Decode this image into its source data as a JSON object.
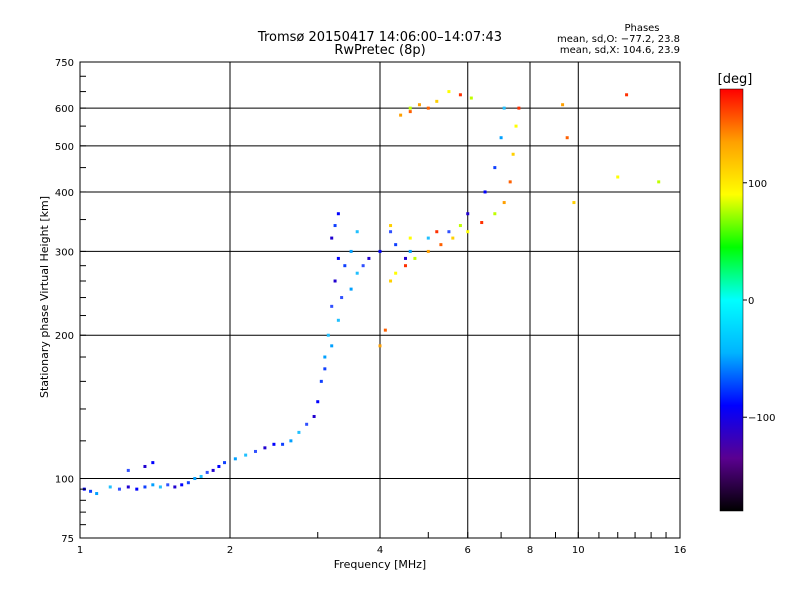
{
  "chart_data": {
    "type": "scatter",
    "title": "Tromsø 20150417 14:06:00–14:07:43",
    "subtitle": "RwPretec (8p)",
    "xlabel": "Frequency [MHz]",
    "ylabel": "Stationary phase Virtual Height [km]",
    "x_scale": "log",
    "y_scale": "log",
    "xlim": [
      1,
      16
    ],
    "ylim": [
      75,
      750
    ],
    "x_ticks": [
      1,
      2,
      4,
      6,
      8,
      10,
      16
    ],
    "x_tick_labels": [
      "1",
      "2",
      "4",
      "6",
      "8",
      "10",
      "16"
    ],
    "y_ticks": [
      75,
      100,
      200,
      300,
      400,
      500,
      600,
      750
    ],
    "y_tick_labels": [
      "75",
      "100",
      "200",
      "300",
      "400",
      "500",
      "600",
      "750"
    ],
    "grid": true,
    "phase_stats": {
      "title": "Phases",
      "line_o": "mean, sd,O: −77.2, 23.8",
      "line_x": "mean, sd,X: 104.6, 23.9"
    },
    "colorbar": {
      "label": "[deg]",
      "range": [
        -180,
        180
      ],
      "ticks": [
        100,
        0,
        -100
      ],
      "tick_labels": [
        "100",
        "0",
        "−100"
      ],
      "colors": [
        "#000000",
        "#5a0090",
        "#0000ff",
        "#00b4ff",
        "#00ffff",
        "#00ff00",
        "#ffff00",
        "#ffa000",
        "#ff0000"
      ]
    },
    "series": [
      {
        "points": [
          [
            1.02,
            95
          ],
          [
            1.05,
            94
          ],
          [
            1.08,
            93
          ],
          [
            1.15,
            96
          ],
          [
            1.2,
            95
          ],
          [
            1.25,
            96
          ],
          [
            1.3,
            95
          ],
          [
            1.35,
            96
          ],
          [
            1.4,
            97
          ],
          [
            1.45,
            96
          ],
          [
            1.5,
            97
          ],
          [
            1.55,
            96
          ],
          [
            1.6,
            97
          ],
          [
            1.65,
            98
          ],
          [
            1.7,
            100
          ],
          [
            1.75,
            101
          ],
          [
            1.8,
            103
          ],
          [
            1.85,
            104
          ],
          [
            1.9,
            106
          ],
          [
            1.95,
            108
          ],
          [
            2.05,
            110
          ],
          [
            2.15,
            112
          ],
          [
            2.25,
            114
          ],
          [
            2.35,
            116
          ],
          [
            2.45,
            118
          ],
          [
            2.55,
            118
          ],
          [
            2.65,
            120
          ],
          [
            2.75,
            125
          ],
          [
            2.85,
            130
          ],
          [
            2.95,
            135
          ],
          [
            3.0,
            145
          ],
          [
            3.05,
            160
          ],
          [
            3.1,
            180
          ],
          [
            3.15,
            200
          ],
          [
            3.2,
            230
          ],
          [
            3.25,
            260
          ],
          [
            3.3,
            290
          ],
          [
            3.4,
            280
          ],
          [
            3.5,
            300
          ],
          [
            3.6,
            270
          ],
          [
            3.7,
            280
          ],
          [
            3.8,
            290
          ],
          [
            4.0,
            300
          ],
          [
            4.3,
            310
          ],
          [
            4.6,
            300
          ],
          [
            5.0,
            320
          ],
          [
            5.5,
            330
          ],
          [
            6.0,
            360
          ],
          [
            6.5,
            400
          ],
          [
            6.8,
            450
          ],
          [
            7.0,
            520
          ],
          [
            7.1,
            600
          ],
          [
            1.25,
            104
          ],
          [
            1.35,
            106
          ],
          [
            1.4,
            108
          ],
          [
            3.1,
            170
          ],
          [
            3.2,
            190
          ],
          [
            3.3,
            215
          ],
          [
            3.35,
            240
          ],
          [
            3.2,
            320
          ],
          [
            3.3,
            360
          ],
          [
            3.25,
            340
          ],
          [
            3.5,
            250
          ],
          [
            3.6,
            330
          ],
          [
            4.2,
            330
          ],
          [
            4.5,
            290
          ]
        ]
      },
      {
        "points": [
          [
            4.0,
            190
          ],
          [
            4.1,
            205
          ],
          [
            4.2,
            260
          ],
          [
            4.3,
            270
          ],
          [
            4.5,
            280
          ],
          [
            4.7,
            290
          ],
          [
            5.0,
            300
          ],
          [
            5.3,
            310
          ],
          [
            5.6,
            320
          ],
          [
            6.0,
            330
          ],
          [
            6.4,
            345
          ],
          [
            6.8,
            360
          ],
          [
            7.1,
            380
          ],
          [
            7.3,
            420
          ],
          [
            7.4,
            480
          ],
          [
            7.5,
            550
          ],
          [
            7.6,
            600
          ],
          [
            4.6,
            600
          ],
          [
            4.8,
            610
          ],
          [
            5.0,
            600
          ],
          [
            5.2,
            620
          ],
          [
            5.5,
            650
          ],
          [
            5.8,
            640
          ],
          [
            6.1,
            630
          ],
          [
            4.4,
            580
          ],
          [
            4.6,
            590
          ],
          [
            4.2,
            340
          ],
          [
            4.6,
            320
          ],
          [
            5.2,
            330
          ],
          [
            5.8,
            340
          ],
          [
            9.3,
            610
          ],
          [
            9.5,
            520
          ],
          [
            9.8,
            380
          ],
          [
            12.0,
            430
          ],
          [
            12.5,
            640
          ],
          [
            14.5,
            420
          ]
        ]
      }
    ]
  }
}
